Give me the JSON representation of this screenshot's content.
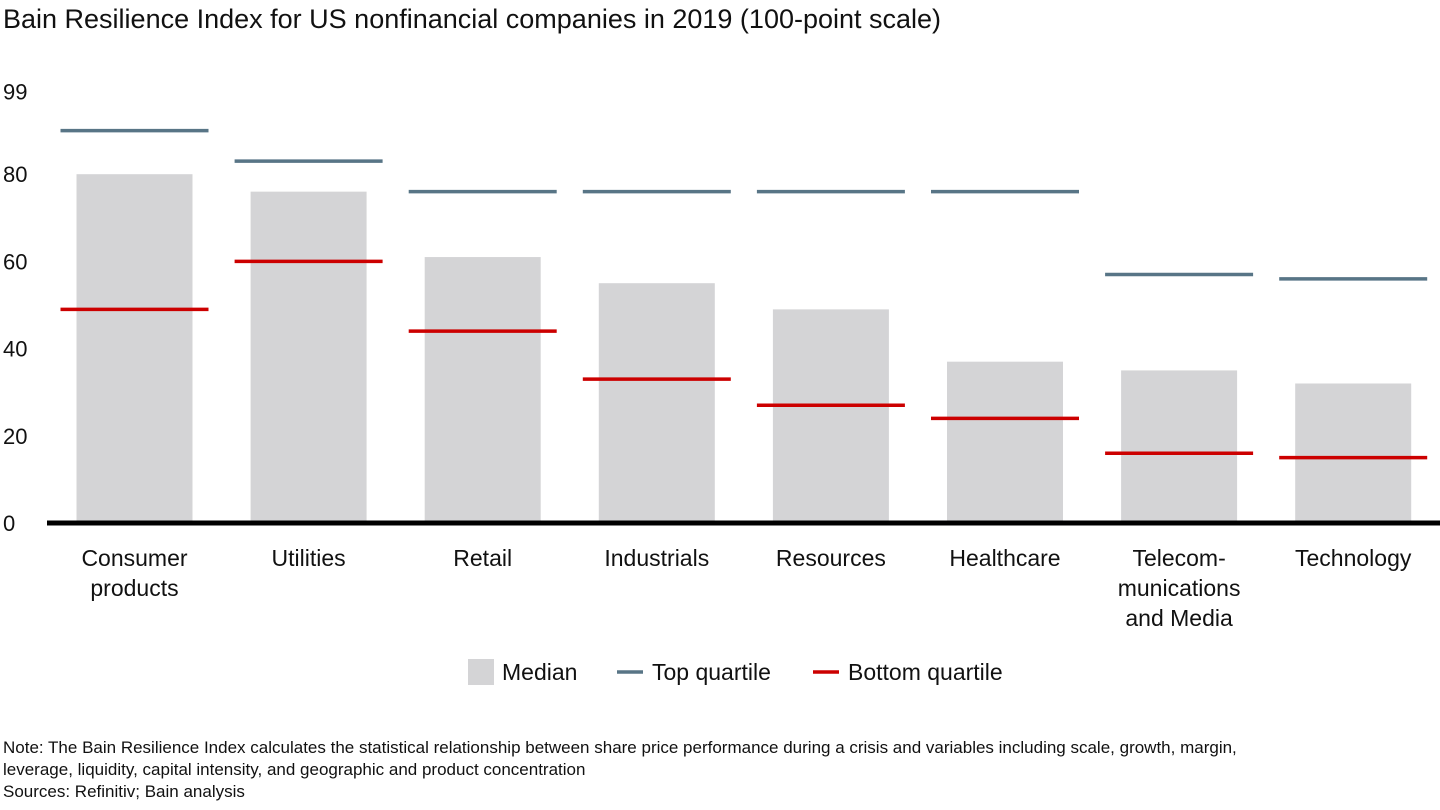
{
  "chart_data": {
    "type": "bar",
    "title": "Bain Resilience Index for US nonfinancial companies in 2019 (100-point scale)",
    "categories": [
      [
        "Consumer",
        "products"
      ],
      [
        "Utilities"
      ],
      [
        "Retail"
      ],
      [
        "Industrials"
      ],
      [
        "Resources"
      ],
      [
        "Healthcare"
      ],
      [
        "Telecom-",
        "munications",
        "and Media"
      ],
      [
        "Technology"
      ]
    ],
    "series": [
      {
        "name": "Median",
        "kind": "bar",
        "values": [
          80,
          76,
          61,
          55,
          49,
          37,
          35,
          32
        ]
      },
      {
        "name": "Top quartile",
        "kind": "marker",
        "values": [
          90,
          83,
          76,
          76,
          76,
          76,
          57,
          56
        ]
      },
      {
        "name": "Bottom quartile",
        "kind": "marker",
        "values": [
          49,
          60,
          44,
          33,
          27,
          24,
          16,
          15
        ]
      }
    ],
    "yticks": [
      "0",
      "20",
      "40",
      "60",
      "80",
      "99"
    ],
    "ytick_values": [
      0,
      20,
      40,
      60,
      80,
      99
    ],
    "ylim": [
      0,
      99
    ],
    "grid": false,
    "legend_position": "bottom-center"
  },
  "colors": {
    "median": "#d4d4d6",
    "top_quartile": "#587586",
    "bottom_quartile": "#cc0000",
    "axis": "#000000"
  },
  "notes": {
    "note_line1": "Note: The Bain Resilience Index calculates the statistical relationship between share price performance during a crisis and variables including scale, growth, margin,",
    "note_line2": "leverage, liquidity, capital intensity, and geographic and product concentration",
    "sources": "Sources: Refinitiv; Bain analysis"
  }
}
